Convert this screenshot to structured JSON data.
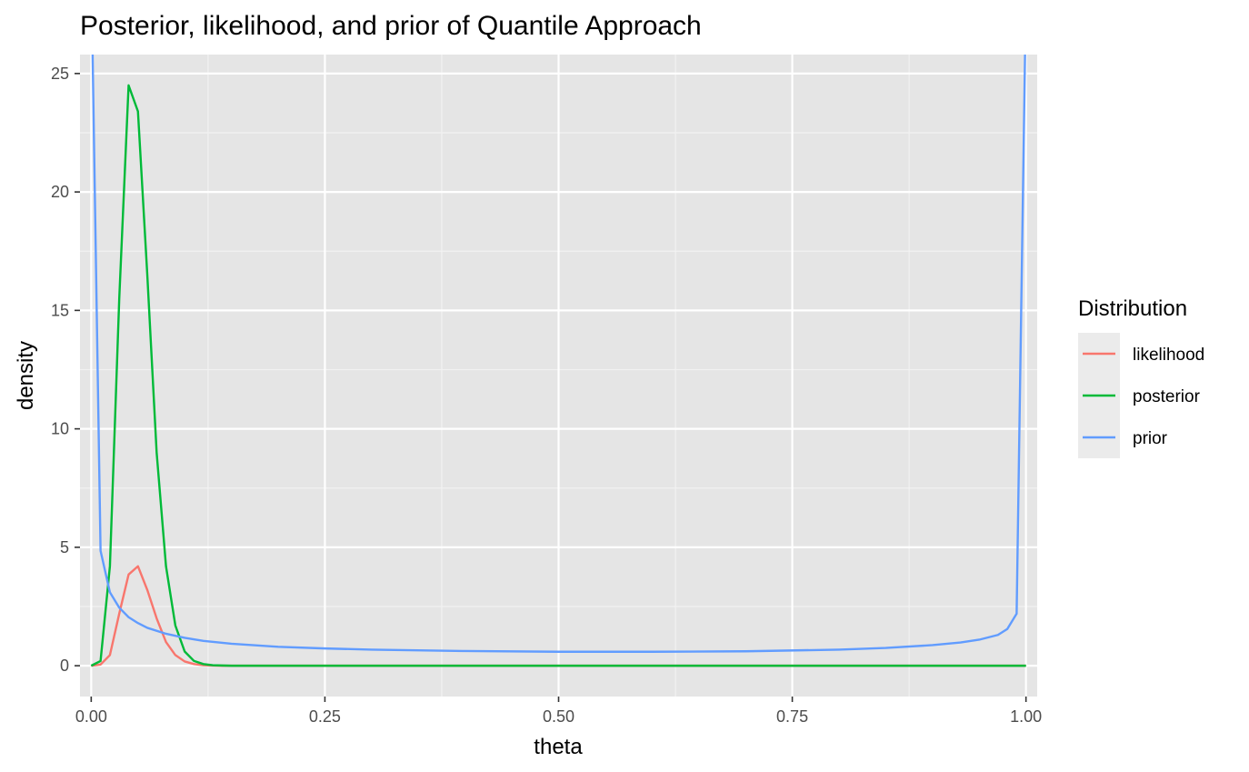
{
  "chart_data": {
    "type": "line",
    "title": "Posterior, likelihood, and prior of Quantile Approach",
    "xlabel": "theta",
    "ylabel": "density",
    "xlim": [
      -0.012,
      1.012
    ],
    "ylim": [
      -1.3,
      25.8
    ],
    "x_ticks": [
      "0.00",
      "0.25",
      "0.50",
      "0.75",
      "1.00"
    ],
    "x_tick_values": [
      0,
      0.25,
      0.5,
      0.75,
      1.0
    ],
    "y_ticks": [
      "0",
      "5",
      "10",
      "15",
      "20",
      "25"
    ],
    "y_tick_values": [
      0,
      5,
      10,
      15,
      20,
      25
    ],
    "grid": true,
    "legend": {
      "title": "Distribution",
      "placement": "right"
    },
    "series": [
      {
        "name": "likelihood",
        "color": "#f8766d",
        "x": [
          0,
          0.01,
          0.02,
          0.03,
          0.04,
          0.05,
          0.06,
          0.07,
          0.08,
          0.09,
          0.1,
          0.11,
          0.12,
          0.13,
          0.14,
          0.15,
          0.2,
          0.3,
          0.4,
          0.5,
          0.6,
          0.7,
          0.8,
          0.9,
          1.0
        ],
        "y": [
          0,
          0.05,
          0.45,
          2.2,
          3.85,
          4.2,
          3.2,
          2.0,
          1.0,
          0.45,
          0.18,
          0.07,
          0.02,
          0.01,
          0,
          0,
          0,
          0,
          0,
          0,
          0,
          0,
          0,
          0,
          0
        ]
      },
      {
        "name": "posterior",
        "color": "#00ba38",
        "x": [
          0,
          0.01,
          0.02,
          0.03,
          0.04,
          0.05,
          0.06,
          0.07,
          0.08,
          0.09,
          0.1,
          0.11,
          0.12,
          0.13,
          0.14,
          0.15,
          0.2,
          0.3,
          0.4,
          0.5,
          0.6,
          0.7,
          0.8,
          0.9,
          1.0
        ],
        "y": [
          0,
          0.2,
          4.2,
          15.5,
          24.5,
          23.4,
          16.5,
          9.0,
          4.2,
          1.7,
          0.6,
          0.2,
          0.07,
          0.02,
          0.01,
          0,
          0,
          0,
          0,
          0,
          0,
          0,
          0,
          0,
          0
        ]
      },
      {
        "name": "prior",
        "color": "#619cff",
        "x": [
          0.0015,
          0.01,
          0.02,
          0.03,
          0.04,
          0.05,
          0.06,
          0.08,
          0.1,
          0.12,
          0.15,
          0.2,
          0.25,
          0.3,
          0.4,
          0.5,
          0.6,
          0.7,
          0.8,
          0.85,
          0.9,
          0.93,
          0.95,
          0.97,
          0.98,
          0.99,
          0.999
        ],
        "y": [
          25.8,
          4.85,
          3.1,
          2.45,
          2.05,
          1.8,
          1.6,
          1.35,
          1.18,
          1.05,
          0.93,
          0.8,
          0.73,
          0.68,
          0.62,
          0.59,
          0.59,
          0.61,
          0.68,
          0.75,
          0.87,
          0.98,
          1.1,
          1.3,
          1.55,
          2.2,
          25.8
        ]
      }
    ]
  }
}
